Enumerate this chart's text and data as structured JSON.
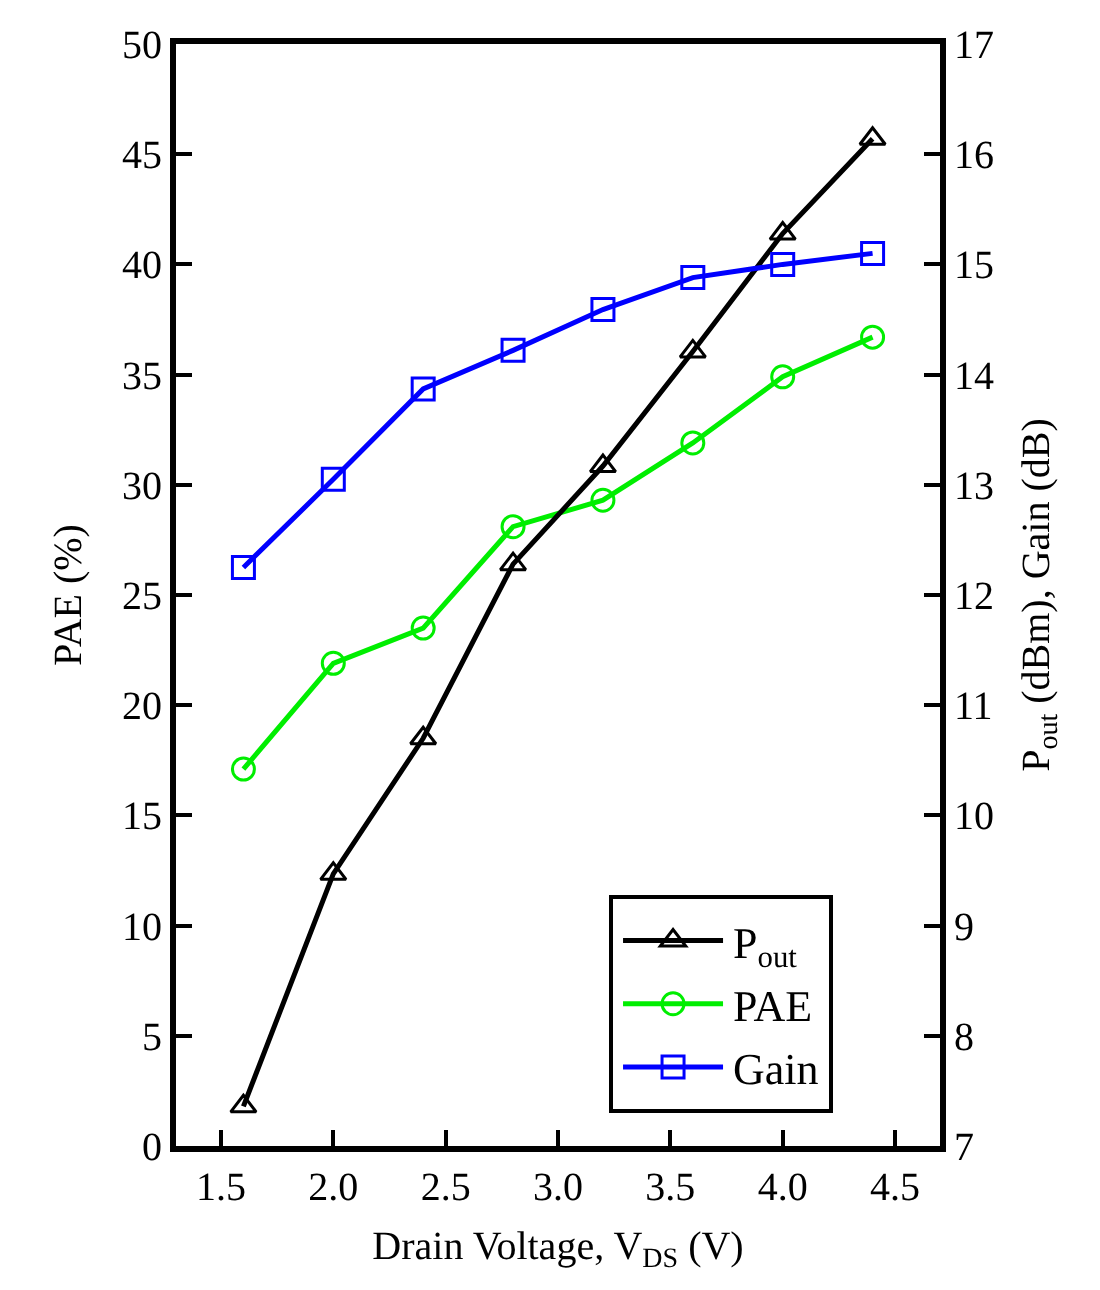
{
  "chart_data": {
    "type": "line",
    "xlabel": "Drain Voltage, V$_{DS}$ (V)",
    "ylabel": "PAE (%)",
    "y2label": "P$_{out}$ (dBm), Gain (dB)",
    "x": [
      1.6,
      2.0,
      2.4,
      2.8,
      3.2,
      3.6,
      4.0,
      4.4
    ],
    "xlim": [
      1.3,
      4.7
    ],
    "xticks": [
      {
        "value": 1.5,
        "label": "1.5"
      },
      {
        "value": 2.0,
        "label": "2.0"
      },
      {
        "value": 2.5,
        "label": "2.5"
      },
      {
        "value": 3.0,
        "label": "3.0"
      },
      {
        "value": 3.5,
        "label": "3.5"
      },
      {
        "value": 4.0,
        "label": "4.0"
      },
      {
        "value": 4.5,
        "label": "4.5"
      }
    ],
    "ylim": [
      0,
      50
    ],
    "yticks": [
      0,
      5,
      10,
      15,
      20,
      25,
      30,
      35,
      40,
      45,
      50
    ],
    "y2lim": [
      7,
      17
    ],
    "y2ticks": [
      7,
      8,
      9,
      10,
      11,
      12,
      13,
      14,
      15,
      16,
      17
    ],
    "series": [
      {
        "name": "P$_{out}$",
        "color": "#000000",
        "axis": "y2",
        "marker": "triangle",
        "values": [
          7.36,
          9.47,
          10.7,
          12.28,
          13.17,
          14.21,
          15.28,
          16.14
        ]
      },
      {
        "name": "PAE",
        "color": "#00ee00",
        "marker": "circle",
        "values": [
          17.1,
          21.9,
          23.5,
          28.1,
          29.3,
          31.9,
          34.9,
          36.7
        ]
      },
      {
        "name": "Gain",
        "color": "#0000ff",
        "axis": "y2",
        "marker": "square",
        "values": [
          12.25,
          13.05,
          13.87,
          14.22,
          14.59,
          14.88,
          15.0,
          15.1
        ]
      }
    ],
    "grid": false,
    "legend": "bottom right",
    "line_style": "solid"
  }
}
